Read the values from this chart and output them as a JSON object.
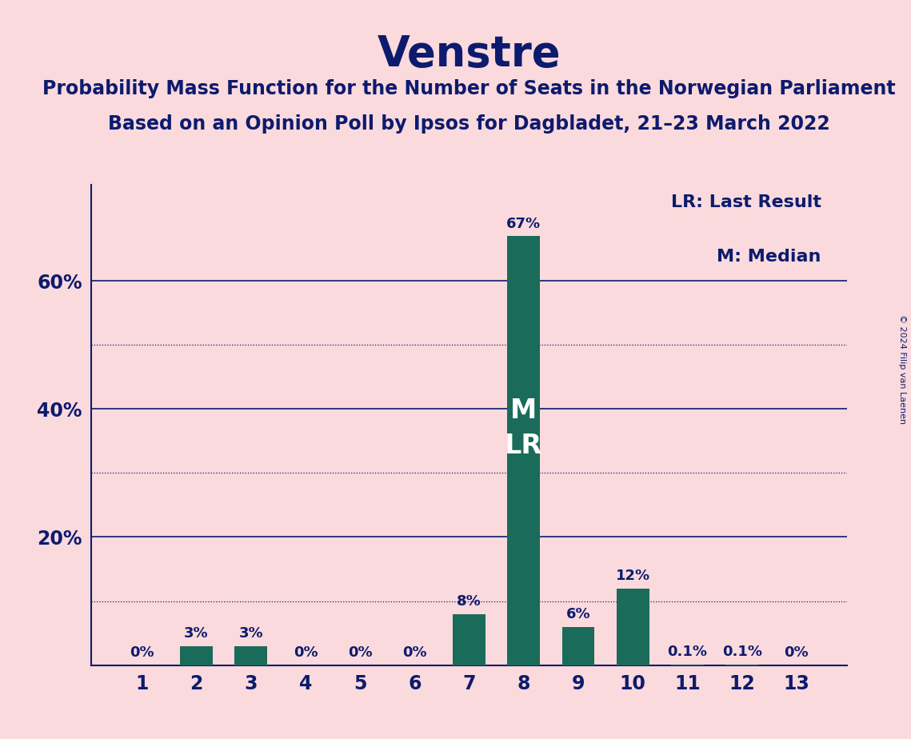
{
  "title": "Venstre",
  "subtitle1": "Probability Mass Function for the Number of Seats in the Norwegian Parliament",
  "subtitle2": "Based on an Opinion Poll by Ipsos for Dagbladet, 21–23 March 2022",
  "copyright": "© 2024 Filip van Laenen",
  "categories": [
    1,
    2,
    3,
    4,
    5,
    6,
    7,
    8,
    9,
    10,
    11,
    12,
    13
  ],
  "values": [
    0.0,
    3.0,
    3.0,
    0.0,
    0.0,
    0.0,
    8.0,
    67.0,
    6.0,
    12.0,
    0.1,
    0.1,
    0.0
  ],
  "labels": [
    "0%",
    "3%",
    "3%",
    "0%",
    "0%",
    "0%",
    "8%",
    "67%",
    "6%",
    "12%",
    "0.1%",
    "0.1%",
    "0%"
  ],
  "bar_color": "#1a6b5a",
  "background_color": "#fadadd",
  "text_color": "#0d1b6e",
  "median_seat": 8,
  "last_result_seat": 8,
  "legend_lr": "LR: Last Result",
  "legend_m": "M: Median",
  "solid_grid_lines": [
    20,
    40,
    60
  ],
  "dotted_grid_lines": [
    10,
    30,
    50
  ],
  "ylim": [
    0,
    75
  ],
  "title_fontsize": 38,
  "subtitle_fontsize": 17,
  "tick_fontsize": 17,
  "label_fontsize": 13,
  "legend_fontsize": 16,
  "ml_fontsize": 24
}
